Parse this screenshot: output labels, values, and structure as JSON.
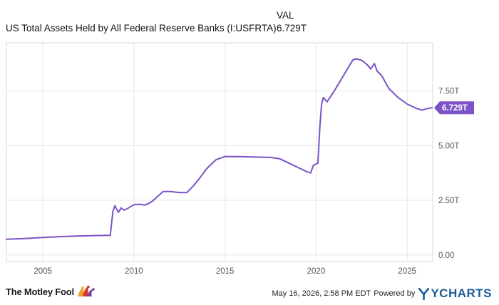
{
  "header": {
    "column_label": "VAL",
    "series_label": "US Total Assets Held by All Federal Reserve Banks (I:USFRTA)",
    "current_value": "6.729T"
  },
  "footer": {
    "brand": "The Motley Fool",
    "timestamp": "May 16, 2026, 2:58 PM EDT",
    "powered_by": "Powered by",
    "provider": "YCHARTS"
  },
  "colors": {
    "line": "#7b52c7",
    "grid": "#e6e6e6",
    "plot_border": "#d9d9d9",
    "tag_bg": "#7b52c7",
    "provider": "#1f5c97"
  },
  "chart_data": {
    "type": "line",
    "title": "",
    "xlabel": "",
    "ylabel": "",
    "x_ticks": [
      2005,
      2010,
      2015,
      2020,
      2025
    ],
    "y_ticks": [
      0,
      2.5,
      5,
      7.5
    ],
    "y_tick_labels": [
      "0.00",
      "2.50T",
      "5.00T",
      "7.50T"
    ],
    "xlim": [
      2003.0,
      2026.4
    ],
    "ylim": [
      -0.3,
      9.7
    ],
    "grid": true,
    "last_value_label": "6.729T",
    "series": [
      {
        "points": [
          [
            2003.0,
            0.72
          ],
          [
            2004.0,
            0.75
          ],
          [
            2005.0,
            0.8
          ],
          [
            2006.0,
            0.84
          ],
          [
            2007.0,
            0.87
          ],
          [
            2008.0,
            0.89
          ],
          [
            2008.7,
            0.9
          ],
          [
            2008.78,
            1.5
          ],
          [
            2008.85,
            2.0
          ],
          [
            2008.95,
            2.25
          ],
          [
            2009.05,
            2.1
          ],
          [
            2009.15,
            1.95
          ],
          [
            2009.3,
            2.15
          ],
          [
            2009.45,
            2.05
          ],
          [
            2009.6,
            2.1
          ],
          [
            2009.8,
            2.2
          ],
          [
            2010.0,
            2.3
          ],
          [
            2010.3,
            2.32
          ],
          [
            2010.6,
            2.28
          ],
          [
            2010.8,
            2.35
          ],
          [
            2011.0,
            2.45
          ],
          [
            2011.4,
            2.75
          ],
          [
            2011.6,
            2.9
          ],
          [
            2012.0,
            2.9
          ],
          [
            2012.5,
            2.85
          ],
          [
            2012.9,
            2.85
          ],
          [
            2013.2,
            3.1
          ],
          [
            2013.6,
            3.5
          ],
          [
            2014.0,
            3.95
          ],
          [
            2014.5,
            4.35
          ],
          [
            2015.0,
            4.5
          ],
          [
            2016.0,
            4.49
          ],
          [
            2017.0,
            4.47
          ],
          [
            2017.5,
            4.46
          ],
          [
            2018.0,
            4.4
          ],
          [
            2018.5,
            4.2
          ],
          [
            2019.0,
            4.0
          ],
          [
            2019.5,
            3.8
          ],
          [
            2019.7,
            3.75
          ],
          [
            2019.85,
            4.1
          ],
          [
            2020.1,
            4.2
          ],
          [
            2020.2,
            5.8
          ],
          [
            2020.3,
            6.9
          ],
          [
            2020.4,
            7.2
          ],
          [
            2020.6,
            7.0
          ],
          [
            2021.0,
            7.5
          ],
          [
            2021.5,
            8.2
          ],
          [
            2022.0,
            8.9
          ],
          [
            2022.2,
            8.97
          ],
          [
            2022.5,
            8.9
          ],
          [
            2022.8,
            8.7
          ],
          [
            2023.0,
            8.5
          ],
          [
            2023.2,
            8.75
          ],
          [
            2023.35,
            8.4
          ],
          [
            2023.6,
            8.2
          ],
          [
            2024.0,
            7.6
          ],
          [
            2024.5,
            7.2
          ],
          [
            2025.0,
            6.9
          ],
          [
            2025.5,
            6.7
          ],
          [
            2025.8,
            6.62
          ],
          [
            2026.1,
            6.69
          ],
          [
            2026.37,
            6.729
          ]
        ]
      }
    ]
  }
}
